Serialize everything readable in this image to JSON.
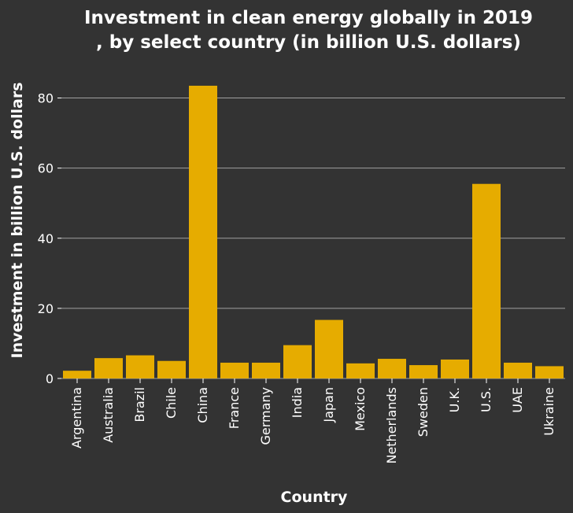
{
  "chart_data": {
    "type": "bar",
    "title_lines": [
      "Investment in clean energy globally in 2019",
      ", by select country (in billion U.S. dollars)"
    ],
    "xlabel": "Country",
    "ylabel": "Investment in billion U.S. dollars",
    "categories": [
      "Argentina",
      "Australia",
      "Brazil",
      "Chile",
      "China",
      "France",
      "Germany",
      "India",
      "Japan",
      "Mexico",
      "Netherlands",
      "Sweden",
      "U.K.",
      "U.S.",
      "UAE",
      "Ukraine"
    ],
    "values": [
      2.2,
      5.8,
      6.6,
      5.0,
      83.5,
      4.5,
      4.5,
      9.5,
      16.7,
      4.3,
      5.6,
      3.8,
      5.4,
      55.5,
      4.5,
      3.5
    ],
    "ylim": [
      0,
      90
    ],
    "yticks": [
      0,
      20,
      40,
      60,
      80
    ],
    "grid": true,
    "colors": {
      "background": "#333333",
      "bar": "#e6ac00",
      "grid": "#a0a0a0",
      "text": "#ffffff"
    }
  }
}
